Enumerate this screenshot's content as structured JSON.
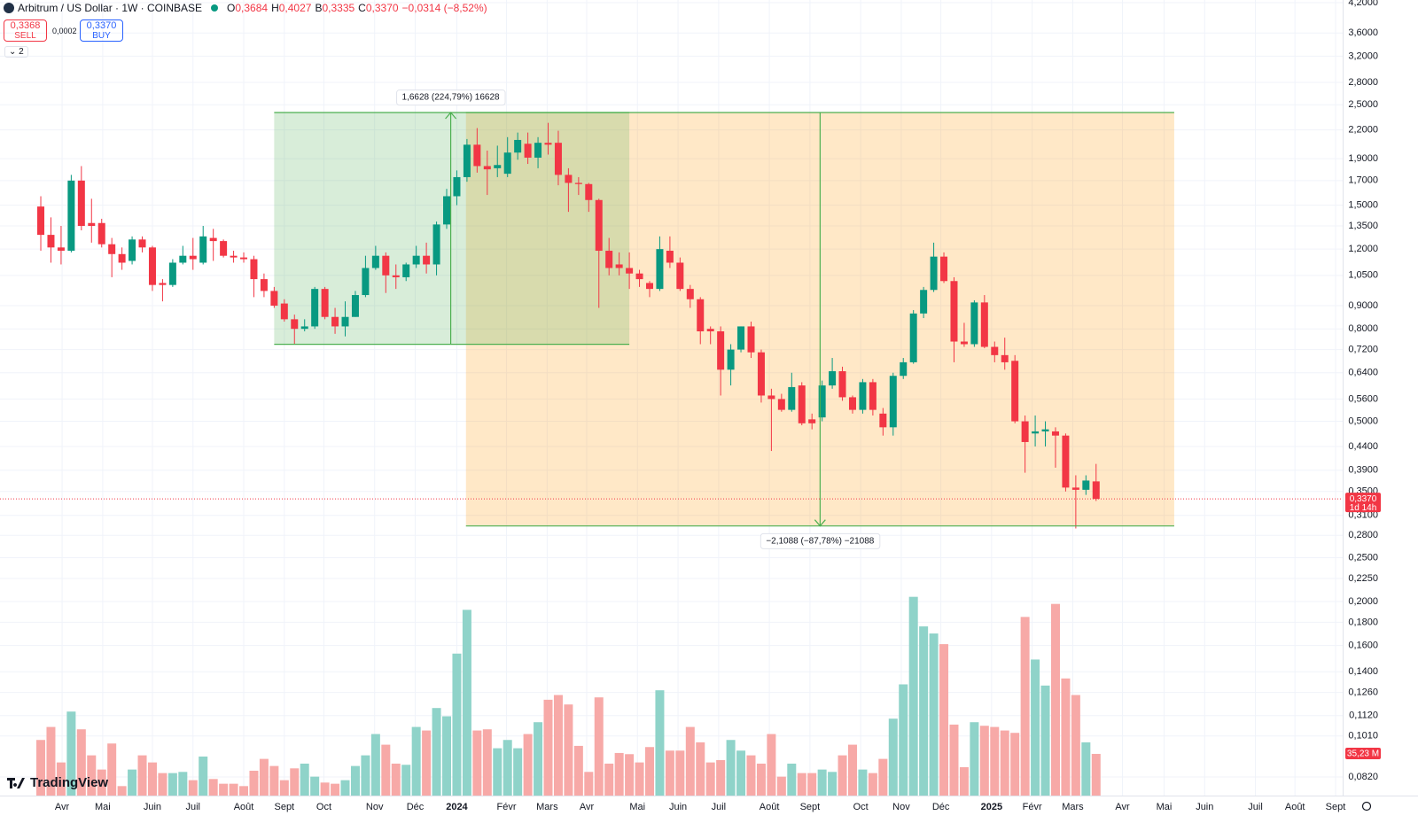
{
  "header": {
    "symbol": "Arbitrum / US Dollar · 1W · COINBASE",
    "ohlc": [
      {
        "key": "O",
        "value": "0,3684"
      },
      {
        "key": "H",
        "value": "0,4027"
      },
      {
        "key": "B",
        "value": "0,3335"
      },
      {
        "key": "C",
        "value": "0,3370"
      }
    ],
    "change": "−0,0314 (−8,52%)",
    "sell_price": "0,3368",
    "sell_label": "SELL",
    "spread": "0,0002",
    "buy_price": "0,3370",
    "buy_label": "BUY",
    "indicators_count": "2"
  },
  "chart_data": {
    "type": "candlestick",
    "log_scale": true,
    "grid": true,
    "up_color": "#089981",
    "down_color": "#f23645",
    "xlim": [
      -4.02,
      128.3
    ],
    "ylim": [
      0.0746,
      4.257
    ],
    "xticks": [
      {
        "value": 2.1,
        "label": "Avr"
      },
      {
        "value": 6.1,
        "label": "Mai"
      },
      {
        "value": 11.0,
        "label": "Juin"
      },
      {
        "value": 15.0,
        "label": "Juil"
      },
      {
        "value": 20.0,
        "label": "Août"
      },
      {
        "value": 24.0,
        "label": "Sept"
      },
      {
        "value": 27.9,
        "label": "Oct"
      },
      {
        "value": 32.9,
        "label": "Nov"
      },
      {
        "value": 36.9,
        "label": "Déc"
      },
      {
        "value": 41.0,
        "label": "2024",
        "bold": true
      },
      {
        "value": 45.9,
        "label": "Févr"
      },
      {
        "value": 49.9,
        "label": "Mars"
      },
      {
        "value": 53.8,
        "label": "Avr"
      },
      {
        "value": 58.8,
        "label": "Mai"
      },
      {
        "value": 62.8,
        "label": "Juin"
      },
      {
        "value": 66.8,
        "label": "Juil"
      },
      {
        "value": 71.8,
        "label": "Août"
      },
      {
        "value": 75.8,
        "label": "Sept"
      },
      {
        "value": 80.8,
        "label": "Oct"
      },
      {
        "value": 84.8,
        "label": "Nov"
      },
      {
        "value": 88.7,
        "label": "Déc"
      },
      {
        "value": 93.7,
        "label": "2025",
        "bold": true
      },
      {
        "value": 97.7,
        "label": "Févr"
      },
      {
        "value": 101.7,
        "label": "Mars"
      },
      {
        "value": 106.6,
        "label": "Avr"
      },
      {
        "value": 110.7,
        "label": "Mai"
      },
      {
        "value": 114.7,
        "label": "Juin"
      },
      {
        "value": 119.7,
        "label": "Juil"
      },
      {
        "value": 123.6,
        "label": "Août"
      },
      {
        "value": 127.6,
        "label": "Sept"
      }
    ],
    "yticks": [
      {
        "value": 4.2,
        "label": "4,2000"
      },
      {
        "value": 3.6,
        "label": "3,6000"
      },
      {
        "value": 3.2,
        "label": "3,2000"
      },
      {
        "value": 2.8,
        "label": "2,8000"
      },
      {
        "value": 2.5,
        "label": "2,5000"
      },
      {
        "value": 2.2,
        "label": "2,2000"
      },
      {
        "value": 1.9,
        "label": "1,9000"
      },
      {
        "value": 1.7,
        "label": "1,7000"
      },
      {
        "value": 1.5,
        "label": "1,5000"
      },
      {
        "value": 1.35,
        "label": "1,3500"
      },
      {
        "value": 1.2,
        "label": "1,2000"
      },
      {
        "value": 1.05,
        "label": "1,0500"
      },
      {
        "value": 0.9,
        "label": "0,9000"
      },
      {
        "value": 0.8,
        "label": "0,8000"
      },
      {
        "value": 0.72,
        "label": "0,7200"
      },
      {
        "value": 0.64,
        "label": "0,6400"
      },
      {
        "value": 0.56,
        "label": "0,5600"
      },
      {
        "value": 0.5,
        "label": "0,5000"
      },
      {
        "value": 0.44,
        "label": "0,4400"
      },
      {
        "value": 0.39,
        "label": "0,3900"
      },
      {
        "value": 0.35,
        "label": "0,3500"
      },
      {
        "value": 0.31,
        "label": "0,3100"
      },
      {
        "value": 0.28,
        "label": "0,2800"
      },
      {
        "value": 0.25,
        "label": "0,2500"
      },
      {
        "value": 0.225,
        "label": "0,2250"
      },
      {
        "value": 0.2,
        "label": "0,2000"
      },
      {
        "value": 0.18,
        "label": "0,1800"
      },
      {
        "value": 0.16,
        "label": "0,1600"
      },
      {
        "value": 0.14,
        "label": "0,1400"
      },
      {
        "value": 0.126,
        "label": "0,1260"
      },
      {
        "value": 0.112,
        "label": "0,1120"
      },
      {
        "value": 0.101,
        "label": "0,1010"
      },
      {
        "value": 0.082,
        "label": "0,0820"
      }
    ],
    "open": [
      1.49,
      1.29,
      1.21,
      1.19,
      1.7,
      1.37,
      1.37,
      1.23,
      1.17,
      1.13,
      1.26,
      1.21,
      1.01,
      1.0,
      1.12,
      1.16,
      1.12,
      1.27,
      1.25,
      1.16,
      1.15,
      1.14,
      1.03,
      0.97,
      0.91,
      0.84,
      0.8,
      0.81,
      0.98,
      0.85,
      0.81,
      0.85,
      0.95,
      1.09,
      1.16,
      1.05,
      1.04,
      1.11,
      1.16,
      1.11,
      1.36,
      1.57,
      1.73,
      2.04,
      1.83,
      1.81,
      1.76,
      1.96,
      2.05,
      1.91,
      2.06,
      2.06,
      1.75,
      1.68,
      1.67,
      1.54,
      1.19,
      1.11,
      1.09,
      1.06,
      1.01,
      0.98,
      1.19,
      1.12,
      0.98,
      0.93,
      0.8,
      0.79,
      0.65,
      0.72,
      0.81,
      0.71,
      0.57,
      0.56,
      0.53,
      0.6,
      0.505,
      0.51,
      0.6,
      0.645,
      0.565,
      0.53,
      0.61,
      0.52,
      0.485,
      0.63,
      0.675,
      0.865,
      0.975,
      1.155,
      1.02,
      0.75,
      0.74,
      0.915,
      0.73,
      0.7,
      0.68,
      0.5,
      0.47,
      0.475,
      0.475,
      0.465,
      0.357,
      0.353,
      0.3684
    ],
    "high": [
      1.57,
      1.41,
      1.35,
      1.75,
      1.83,
      1.55,
      1.4,
      1.27,
      1.21,
      1.28,
      1.28,
      1.22,
      1.03,
      1.14,
      1.22,
      1.27,
      1.35,
      1.33,
      1.26,
      1.19,
      1.18,
      1.16,
      1.06,
      0.99,
      0.93,
      0.86,
      0.84,
      0.99,
      0.99,
      0.89,
      0.92,
      0.97,
      1.16,
      1.22,
      1.18,
      1.11,
      1.12,
      1.22,
      1.24,
      1.38,
      1.63,
      1.79,
      2.1,
      2.22,
      1.98,
      2.03,
      2.12,
      2.17,
      2.17,
      2.12,
      2.28,
      2.19,
      1.81,
      1.73,
      1.68,
      1.55,
      1.27,
      1.18,
      1.18,
      1.08,
      1.02,
      1.28,
      1.28,
      1.15,
      1.0,
      0.94,
      0.81,
      0.81,
      0.74,
      0.81,
      0.83,
      0.72,
      0.59,
      0.575,
      0.64,
      0.61,
      0.52,
      0.615,
      0.69,
      0.66,
      0.57,
      0.62,
      0.62,
      0.535,
      0.64,
      0.69,
      0.88,
      0.99,
      1.24,
      1.18,
      1.04,
      0.825,
      0.925,
      0.95,
      0.75,
      0.765,
      0.7,
      0.515,
      0.515,
      0.5,
      0.485,
      0.47,
      0.38,
      0.38,
      0.4027
    ],
    "low": [
      1.19,
      1.12,
      1.11,
      1.18,
      1.32,
      1.24,
      1.21,
      1.04,
      1.08,
      1.11,
      1.18,
      0.97,
      0.92,
      0.99,
      1.11,
      1.08,
      1.11,
      1.13,
      1.15,
      1.12,
      1.12,
      0.94,
      0.94,
      0.89,
      0.83,
      0.74,
      0.79,
      0.8,
      0.84,
      0.78,
      0.77,
      0.85,
      0.94,
      1.08,
      0.96,
      0.98,
      1.02,
      1.09,
      1.06,
      1.05,
      1.33,
      1.5,
      1.69,
      1.77,
      1.58,
      1.73,
      1.73,
      1.89,
      1.85,
      1.81,
      1.94,
      1.66,
      1.45,
      1.58,
      1.45,
      0.89,
      1.05,
      1.05,
      0.98,
      0.99,
      0.94,
      0.97,
      1.09,
      0.97,
      0.89,
      0.74,
      0.74,
      0.57,
      0.6,
      0.71,
      0.69,
      0.55,
      0.43,
      0.525,
      0.525,
      0.49,
      0.48,
      0.5,
      0.59,
      0.555,
      0.52,
      0.52,
      0.515,
      0.465,
      0.465,
      0.62,
      0.67,
      0.845,
      0.965,
      1.01,
      0.675,
      0.73,
      0.73,
      0.725,
      0.675,
      0.65,
      0.495,
      0.385,
      0.44,
      0.44,
      0.395,
      0.35,
      0.29,
      0.344,
      0.3335
    ],
    "close": [
      1.29,
      1.21,
      1.19,
      1.7,
      1.35,
      1.35,
      1.23,
      1.17,
      1.12,
      1.26,
      1.21,
      1.0,
      1.0,
      1.12,
      1.16,
      1.14,
      1.28,
      1.25,
      1.16,
      1.15,
      1.14,
      1.03,
      0.97,
      0.9,
      0.84,
      0.8,
      0.81,
      0.98,
      0.85,
      0.81,
      0.85,
      0.95,
      1.09,
      1.16,
      1.05,
      1.04,
      1.11,
      1.16,
      1.11,
      1.36,
      1.57,
      1.73,
      2.04,
      1.83,
      1.8,
      1.84,
      1.96,
      2.09,
      1.91,
      2.06,
      2.04,
      1.75,
      1.68,
      1.67,
      1.54,
      1.19,
      1.09,
      1.09,
      1.06,
      1.03,
      0.98,
      1.2,
      1.12,
      0.98,
      0.93,
      0.79,
      0.79,
      0.65,
      0.72,
      0.81,
      0.71,
      0.57,
      0.56,
      0.53,
      0.595,
      0.495,
      0.495,
      0.6,
      0.645,
      0.565,
      0.53,
      0.61,
      0.53,
      0.485,
      0.63,
      0.675,
      0.865,
      0.975,
      1.155,
      1.02,
      0.75,
      0.74,
      0.915,
      0.73,
      0.7,
      0.675,
      0.5,
      0.45,
      0.475,
      0.48,
      0.465,
      0.357,
      0.353,
      0.37,
      0.337
    ],
    "volume": {
      "values": [
        47,
        58,
        28,
        71,
        56,
        34,
        22,
        44,
        8,
        22,
        34,
        28,
        19,
        19,
        20,
        13,
        33,
        14,
        10,
        10,
        8,
        21,
        31,
        25,
        13,
        23,
        27,
        16,
        11,
        10,
        13,
        25,
        34,
        52,
        43,
        27,
        26,
        58,
        55,
        74,
        67,
        120,
        157,
        55,
        56,
        40,
        47,
        40,
        52,
        62,
        81,
        85,
        77,
        42,
        20,
        83,
        27,
        36,
        35,
        28,
        41,
        89,
        38,
        38,
        58,
        45,
        28,
        30,
        47,
        38,
        34,
        27,
        52,
        16,
        27,
        19,
        19,
        22,
        20,
        34,
        43,
        22,
        19,
        31,
        65,
        94,
        168,
        143,
        137,
        128,
        60,
        24,
        62,
        59,
        58,
        55,
        53,
        151,
        115,
        93,
        162,
        99,
        85,
        45,
        35.23
      ],
      "ylim": [
        0,
        170
      ],
      "up_color": "#8fd3c9",
      "down_color": "#f7a9a7",
      "last_label": "35,23 M"
    },
    "last_price_label": "0,3370",
    "countdown": "1d 14h",
    "drawings": [
      {
        "from": 41.9,
        "to": 111.7,
        "low": 0.2937,
        "high": 2.4025,
        "direction": "down",
        "arrow_at": 76.8,
        "fill": "#ff9800",
        "line_color": "#4caf50",
        "label": "−2,1088 (−87,78%) −21088"
      },
      {
        "from": 23,
        "to": 58,
        "low": 0.7397,
        "high": 2.4025,
        "direction": "up",
        "arrow_at": 40.4,
        "fill": "#4caf50",
        "line_color": "#4caf50",
        "label": "1,6628 (224,79%) 16628"
      }
    ],
    "watermark": "TradingView"
  }
}
